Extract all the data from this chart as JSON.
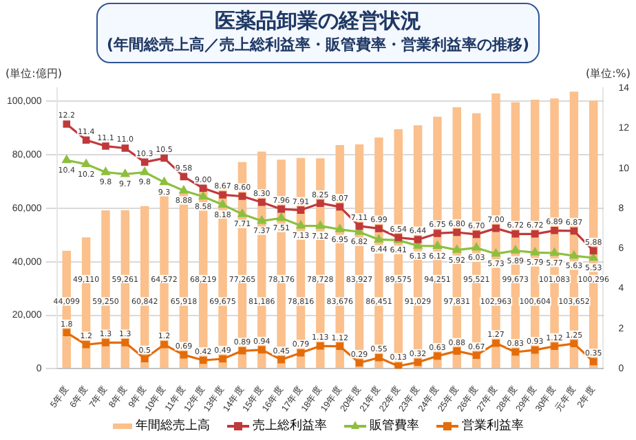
{
  "chart_data": {
    "type": "bar",
    "title": "医薬品卸業の経営状況",
    "subtitle": "(年間総売上高／売上総利益率・販管費率・営業利益率の推移)",
    "ylabel": "(単位:億円)",
    "y2label": "(単位:%)",
    "categories": [
      "5年度",
      "6年度",
      "7年度",
      "8年度",
      "9年度",
      "10年度",
      "11年度",
      "12年度",
      "13年度",
      "14年度",
      "15年度",
      "16年度",
      "17年度",
      "18年度",
      "19年度",
      "20年度",
      "21年度",
      "22年度",
      "23年度",
      "24年度",
      "25年度",
      "26年度",
      "27年度",
      "28年度",
      "29年度",
      "30年度",
      "元年度",
      "2年度"
    ],
    "series": [
      {
        "name": "年間総売上高",
        "color": "#fbc08c",
        "values": [
          44099,
          49110,
          59250,
          59261,
          60842,
          64572,
          65918,
          68219,
          69675,
          77265,
          81186,
          78176,
          78816,
          78728,
          83676,
          83927,
          86451,
          89575,
          91029,
          94251,
          97831,
          95521,
          102963,
          99673,
          100604,
          101083,
          103652,
          100296
        ],
        "value_labels": [
          "44,099",
          "49,110",
          "59,250",
          "59,261",
          "60,842",
          "64,572",
          "65,918",
          "68,219",
          "69,675",
          "77,265",
          "81,186",
          "78,176",
          "78,816",
          "78,728",
          "83,676",
          "83,927",
          "86,451",
          "89,575",
          "91,029",
          "94,251",
          "97,831",
          "95,521",
          "102,963",
          "99,673",
          "100,604",
          "101,083",
          "103,652",
          "100,296"
        ]
      },
      {
        "name": "売上総利益率",
        "type": "line",
        "axis": "y2",
        "color": "#c0393b",
        "marker": "square",
        "values": [
          12.2,
          11.4,
          11.1,
          11.0,
          10.3,
          10.5,
          9.58,
          9.0,
          8.67,
          8.6,
          8.3,
          7.96,
          7.91,
          8.25,
          8.07,
          7.11,
          6.99,
          6.54,
          6.44,
          6.75,
          6.8,
          6.7,
          7.0,
          6.72,
          6.72,
          6.89,
          6.87,
          5.88
        ],
        "value_labels": [
          "12.2",
          "11.4",
          "11.1",
          "11.0",
          "10.3",
          "10.5",
          "9.58",
          "9.00",
          "8.67",
          "8.60",
          "8.30",
          "7.96",
          "7.91",
          "8.25",
          "8.07",
          "7.11",
          "6.99",
          "6.54",
          "6.44",
          "6.75",
          "6.80",
          "6.70",
          "7.00",
          "6.72",
          "6.72",
          "6.89",
          "6.87",
          "5.88"
        ]
      },
      {
        "name": "販管費率",
        "type": "line",
        "axis": "y2",
        "color": "#8dbf3f",
        "marker": "triangle",
        "values": [
          10.4,
          10.2,
          9.8,
          9.7,
          9.8,
          9.3,
          8.88,
          8.58,
          8.18,
          7.71,
          7.37,
          7.51,
          7.13,
          7.12,
          6.95,
          6.82,
          6.44,
          6.41,
          6.13,
          6.12,
          5.92,
          6.03,
          5.73,
          5.89,
          5.79,
          5.77,
          5.63,
          5.53
        ],
        "value_labels": [
          "10.4",
          "10.2",
          "9.8",
          "9.7",
          "9.8",
          "9.3",
          "8.88",
          "8.58",
          "8.18",
          "7.71",
          "7.37",
          "7.51",
          "7.13",
          "7.12",
          "6.95",
          "6.82",
          "6.44",
          "6.41",
          "6.13",
          "6.12",
          "5.92",
          "6.03",
          "5.73",
          "5.89",
          "5.79",
          "5.77",
          "5.63",
          "5.53"
        ]
      },
      {
        "name": "営業利益率",
        "type": "line",
        "axis": "y2",
        "color": "#e46c0a",
        "marker": "square",
        "values": [
          1.8,
          1.2,
          1.3,
          1.3,
          0.5,
          1.2,
          0.69,
          0.42,
          0.49,
          0.89,
          0.94,
          0.45,
          0.79,
          1.13,
          1.12,
          0.29,
          0.55,
          0.13,
          0.32,
          0.63,
          0.88,
          0.67,
          1.27,
          0.83,
          0.93,
          1.12,
          1.25,
          0.35
        ],
        "value_labels": [
          "1.8",
          "1.2",
          "1.3",
          "1.3",
          "0.5",
          "1.2",
          "0.69",
          "0.42",
          "0.49",
          "0.89",
          "0.94",
          "0.45",
          "0.79",
          "1.13",
          "1.12",
          "0.29",
          "0.55",
          "0.13",
          "0.32",
          "0.63",
          "0.88",
          "0.67",
          "1.27",
          "0.83",
          "0.93",
          "1.12",
          "1.25",
          "0.35"
        ]
      }
    ],
    "ylim": [
      0,
      105000
    ],
    "yticks": [
      0,
      {
        "value": 20000,
        "label": "20,000"
      },
      {
        "value": 40000,
        "label": "40,000"
      },
      {
        "value": 60000,
        "label": "60,000"
      },
      {
        "value": 80000,
        "label": "80,000"
      },
      {
        "value": 100000,
        "label": "100,000"
      }
    ],
    "y2lim": [
      0,
      14
    ],
    "y2ticks": [
      0,
      2,
      4,
      6,
      8,
      10,
      12,
      14
    ],
    "grid": "y",
    "legend": "bottom",
    "line_style": "solid"
  }
}
